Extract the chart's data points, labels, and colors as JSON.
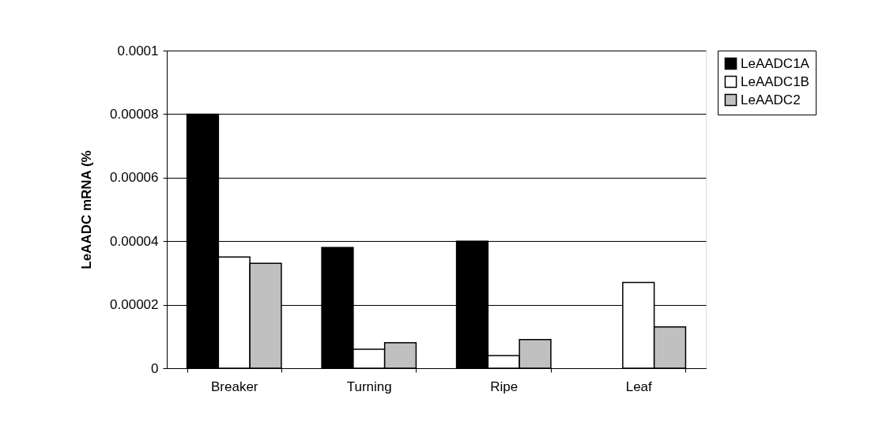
{
  "chart_data": {
    "type": "bar",
    "ylabel": "LeAADC mRNA (%",
    "categories": [
      "Breaker",
      "Turning",
      "Ripe",
      "Leaf"
    ],
    "series": [
      {
        "name": "LeAADC1A",
        "color": "#000000",
        "values": [
          8e-05,
          3.8e-05,
          4e-05,
          null
        ]
      },
      {
        "name": "LeAADC1B",
        "color": "#ffffff",
        "values": [
          3.5e-05,
          6e-06,
          4e-06,
          2.7e-05
        ]
      },
      {
        "name": "LeAADC2",
        "color": "#c0c0c0",
        "values": [
          3.3e-05,
          8e-06,
          9e-06,
          1.3e-05
        ]
      }
    ],
    "ylim": [
      0,
      0.0001
    ],
    "yticks": [
      0,
      {
        "value": 2e-05,
        "label": "0.00002"
      },
      {
        "value": 4e-05,
        "label": "0.00004"
      },
      {
        "value": 6e-05,
        "label": "0.00006"
      },
      {
        "value": 8e-05,
        "label": "0.00008"
      },
      0.0001
    ],
    "grid": "y",
    "legend": "right"
  }
}
